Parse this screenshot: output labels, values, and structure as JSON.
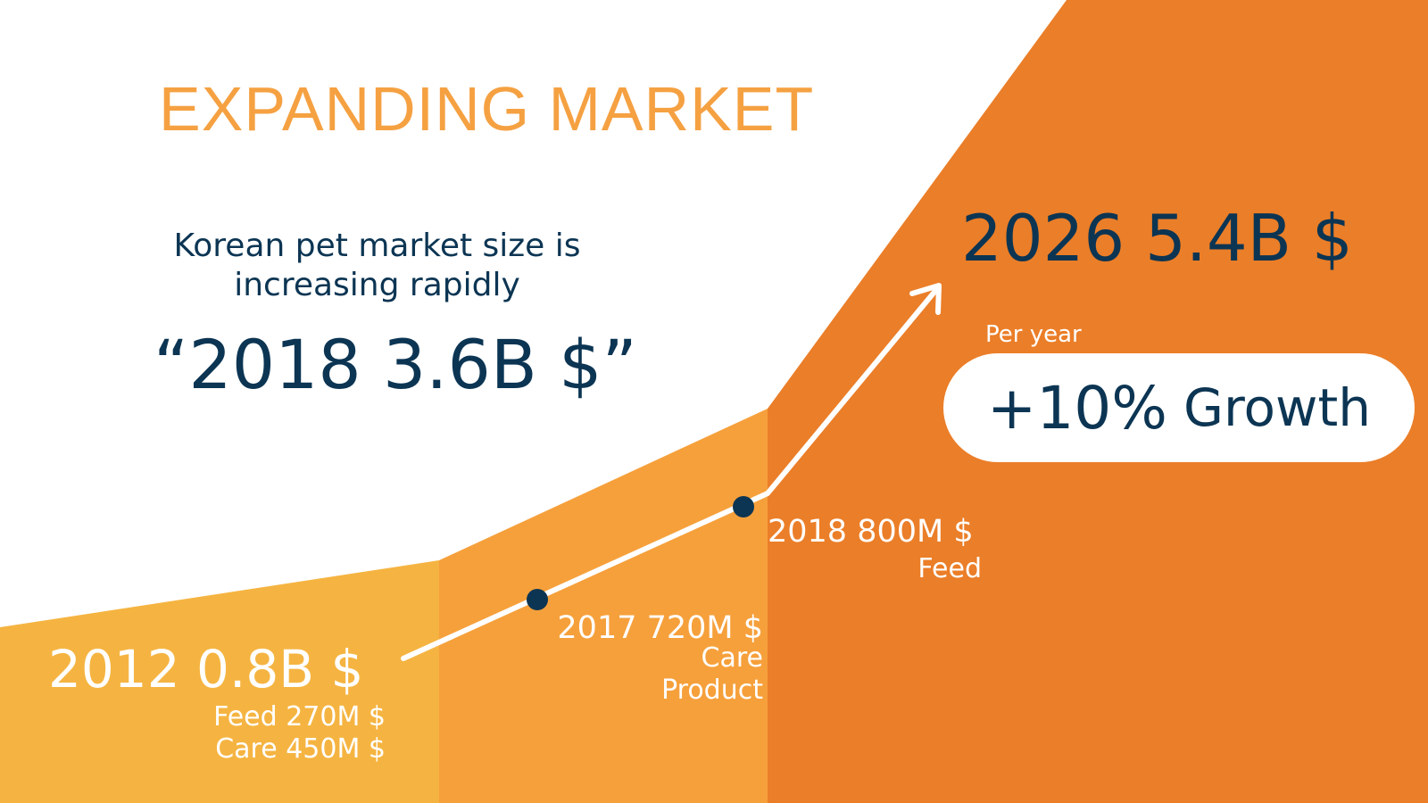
{
  "colors": {
    "band_light": "#f5b441",
    "band_mid": "#f6a03b",
    "band_dark": "#eb7e28",
    "title": "#f5a142",
    "navy": "#0c3553",
    "dot": "#0c3553",
    "white": "#ffffff"
  },
  "title": "EXPANDING MARKET",
  "subtitle": "Korean pet market size is increasing rapidly",
  "headline": "“2018 3.6B $”",
  "forecast": "2026 5.4B $",
  "growth": {
    "per_year_label": "Per year",
    "percent": "+10%",
    "word": "Growth"
  },
  "milestones": [
    {
      "year_value": "2012  0.8B $",
      "details": [
        "Feed 270M $",
        "Care 450M $"
      ]
    },
    {
      "year_value": "2017 720M $",
      "details": [
        "Care",
        "Product"
      ]
    },
    {
      "year_value": "2018 800M $",
      "details": [
        "Feed"
      ]
    }
  ],
  "icons": {
    "trend_arrow": "arrow-up-right-icon",
    "milestone_dot": "circle-dot-icon"
  }
}
